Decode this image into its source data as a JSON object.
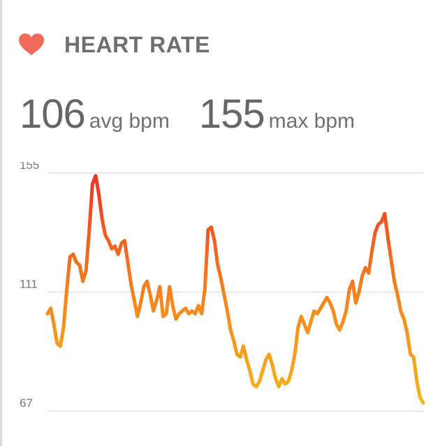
{
  "header": {
    "title": "HEART RATE",
    "icon": "heart-icon",
    "icon_color": "#f06b5a"
  },
  "stats": {
    "avg_value": "106",
    "avg_unit": "avg bpm",
    "max_value": "155",
    "max_unit": "max bpm"
  },
  "chart_data": {
    "type": "line",
    "title": "",
    "xlabel": "",
    "ylabel": "",
    "ylim": [
      67,
      155
    ],
    "yticks": [
      155,
      111,
      67
    ],
    "grid": true,
    "gradient_colors": {
      "high": "#ef3224",
      "mid": "#f5821f",
      "low": "#f9b81b"
    },
    "series": [
      {
        "values": [
          103,
          105,
          99,
          92,
          91,
          98,
          112,
          124,
          125,
          122,
          121,
          115,
          119,
          134,
          151,
          154,
          147,
          138,
          132,
          130,
          127,
          128,
          125,
          129,
          130,
          122,
          114,
          108,
          102,
          107,
          113,
          115,
          110,
          104,
          108,
          113,
          102,
          103,
          113,
          106,
          101,
          103,
          104,
          105,
          103,
          104,
          103,
          106,
          103,
          112,
          134,
          135,
          130,
          121,
          116,
          110,
          104,
          97,
          93,
          88,
          87,
          91,
          86,
          82,
          77,
          76,
          78,
          82,
          86,
          88,
          84,
          79,
          76,
          79,
          77,
          78,
          82,
          88,
          98,
          102,
          99,
          96,
          100,
          104,
          103,
          105,
          107,
          109,
          107,
          104,
          99,
          97,
          100,
          104,
          112,
          115,
          107,
          111,
          117,
          120,
          118,
          126,
          133,
          136,
          137,
          140,
          131,
          123,
          115,
          110,
          104,
          101,
          96,
          88,
          87,
          78,
          72,
          70
        ]
      }
    ]
  }
}
